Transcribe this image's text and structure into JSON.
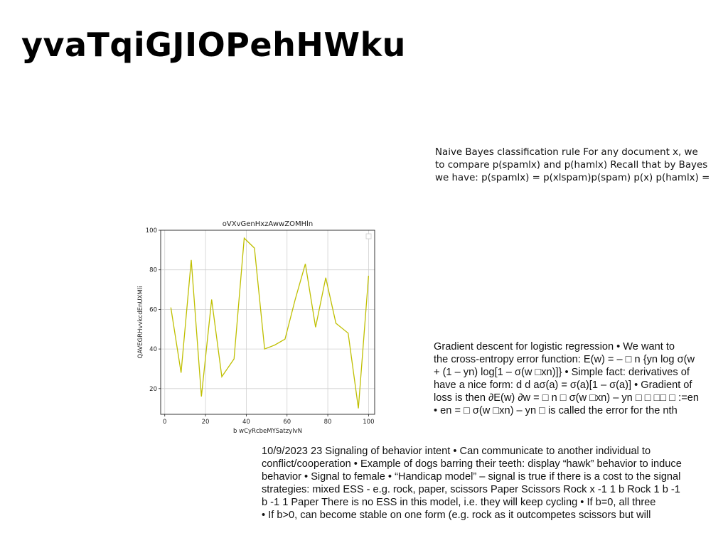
{
  "page": {
    "title": "yvaTqiGJIOPehHWku"
  },
  "text_blocks": [
    {
      "lines": [
        "Naive Bayes classification rule For any document x, we",
        "to compare p(spamlx) and p(hamlx) Recall that by Bayes",
        "we have: p(spamlx) = p(xlspam)p(spam) p(x) p(hamlx) ="
      ]
    },
    {
      "lines": [
        "Gradient descent for logistic regression • We want to",
        "the cross-entropy error function: E(w) = – □ n {yn log σ(w",
        "+ (1 – yn) log[1 – σ(w □xn)]} • Simple fact: derivatives of",
        "have a nice form: d d aσ(a) = σ(a)[1 – σ(a)] • Gradient of",
        "loss is then ∂E(w) ∂w = □ n □ σ(w □xn) – yn □ □ □□ □ :=en",
        "• en = □ σ(w □xn) – yn □ is called the error for the nth"
      ]
    },
    {
      "lines": [
        "10/9/2023 23 Signaling of behavior intent • Can communicate to another individual to",
        "conflict/cooperation • Example of dogs barring their teeth: display “hawk” behavior to induce",
        "behavior • Signal to female • “Handicap model” – signal is true if there is a cost to the signal",
        "strategies: mixed ESS - e.g. rock, paper, scissors Paper Scissors Rock x -1 1 b Rock 1 b -1",
        "b -1 1 Paper There is no ESS in this model, i.e. they will keep cycling • If b=0, all three",
        "• If b>0, can become stable on one form (e.g. rock as it outcompetes scissors but will"
      ]
    }
  ],
  "chart_data": {
    "type": "line",
    "title": "oVXvGenHxzAwwZOMHln",
    "xlabel": "b wCyRcbeMYSatzylvN",
    "ylabel": "QAVEGRHvvkcdEnUXMli",
    "xlim": [
      -2,
      103
    ],
    "ylim": [
      7,
      100
    ],
    "xticks": [
      0,
      20,
      40,
      60,
      80,
      100
    ],
    "yticks": [
      20,
      40,
      60,
      80,
      100
    ],
    "grid": true,
    "legend": "top-right",
    "series": [
      {
        "color": "#bfbf00",
        "x": [
          3,
          8,
          13,
          18,
          23,
          28,
          34,
          39,
          44,
          49,
          54,
          59,
          64,
          69,
          74,
          79,
          84,
          90,
          95,
          100
        ],
        "y": [
          61,
          28,
          85,
          16,
          65,
          26,
          35,
          96,
          91,
          40,
          42,
          45,
          65,
          83,
          51,
          76,
          53,
          48,
          10,
          77
        ]
      }
    ]
  }
}
